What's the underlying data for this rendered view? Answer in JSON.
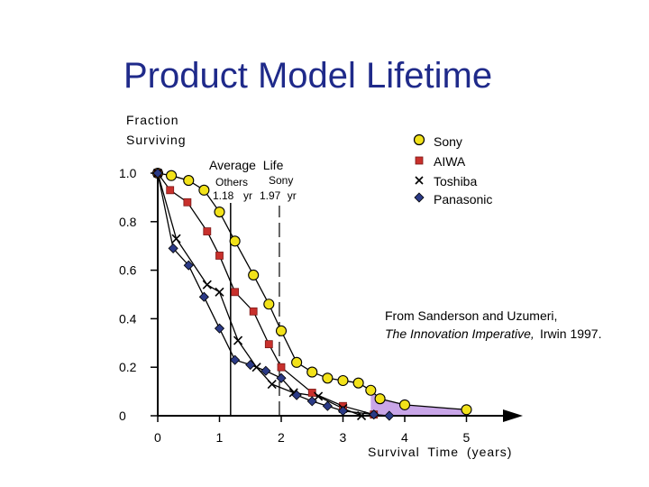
{
  "title": "Product Model Lifetime",
  "chart_data": {
    "type": "line",
    "ylabel_line1": "Fraction",
    "ylabel_line2": "Surviving",
    "xlabel": "Survival Time (years)",
    "x_ticks": [
      "0",
      "1",
      "2",
      "3",
      "4",
      "5"
    ],
    "y_ticks": [
      "0",
      "0.2",
      "0.4",
      "0.6",
      "0.8",
      "1.0"
    ],
    "xlim": [
      0,
      5.9
    ],
    "ylim": [
      0,
      1.08
    ],
    "series": [
      {
        "name": "Sony",
        "marker": "circle",
        "color": "#f2e21a",
        "points": [
          [
            0,
            1.0
          ],
          [
            0.22,
            0.99
          ],
          [
            0.5,
            0.97
          ],
          [
            0.75,
            0.93
          ],
          [
            1.0,
            0.84
          ],
          [
            1.25,
            0.72
          ],
          [
            1.55,
            0.58
          ],
          [
            1.8,
            0.46
          ],
          [
            2.0,
            0.35
          ],
          [
            2.25,
            0.22
          ],
          [
            2.5,
            0.18
          ],
          [
            2.75,
            0.155
          ],
          [
            3.0,
            0.145
          ],
          [
            3.25,
            0.135
          ],
          [
            3.45,
            0.105
          ],
          [
            3.6,
            0.07
          ],
          [
            4.0,
            0.045
          ],
          [
            5.0,
            0.025
          ]
        ]
      },
      {
        "name": "AIWA",
        "marker": "square",
        "color": "#c8302c",
        "points": [
          [
            0,
            1.0
          ],
          [
            0.2,
            0.93
          ],
          [
            0.48,
            0.88
          ],
          [
            0.8,
            0.76
          ],
          [
            1.0,
            0.66
          ],
          [
            1.25,
            0.51
          ],
          [
            1.55,
            0.43
          ],
          [
            1.8,
            0.295
          ],
          [
            2.0,
            0.2
          ],
          [
            2.5,
            0.095
          ],
          [
            3.0,
            0.04
          ],
          [
            3.5,
            0.005
          ]
        ]
      },
      {
        "name": "Toshiba",
        "marker": "x",
        "color": "#000000",
        "points": [
          [
            0,
            1.0
          ],
          [
            0.3,
            0.73
          ],
          [
            0.8,
            0.54
          ],
          [
            1.0,
            0.51
          ],
          [
            1.3,
            0.31
          ],
          [
            1.6,
            0.2
          ],
          [
            1.85,
            0.13
          ],
          [
            2.2,
            0.095
          ],
          [
            2.6,
            0.08
          ],
          [
            3.0,
            0.03
          ],
          [
            3.3,
            0.0
          ]
        ]
      },
      {
        "name": "Panasonic",
        "marker": "diamond",
        "color": "#2b3a86",
        "points": [
          [
            0,
            1.0
          ],
          [
            0.25,
            0.69
          ],
          [
            0.5,
            0.62
          ],
          [
            0.75,
            0.49
          ],
          [
            1.0,
            0.36
          ],
          [
            1.25,
            0.23
          ],
          [
            1.5,
            0.21
          ],
          [
            1.75,
            0.185
          ],
          [
            2.0,
            0.155
          ],
          [
            2.25,
            0.085
          ],
          [
            2.5,
            0.06
          ],
          [
            2.75,
            0.04
          ],
          [
            3.0,
            0.02
          ],
          [
            3.5,
            0.005
          ],
          [
            3.75,
            0.0
          ]
        ]
      }
    ],
    "average_life": {
      "heading": "Average Life",
      "others_label": "Others",
      "sony_label": "Sony",
      "others_value_text": "1.18",
      "unit_text": "yr",
      "sony_value_text": "1.97 yr",
      "others_years": 1.18,
      "sony_years": 1.97
    },
    "source_line1": "From Sanderson and Uzumeri,",
    "source_line2_italic": "The Innovation Imperative,",
    "source_line2_rest": " Irwin 1997.",
    "shaded_tail_color": "#c9a6e8",
    "legend_position": "top-right"
  }
}
